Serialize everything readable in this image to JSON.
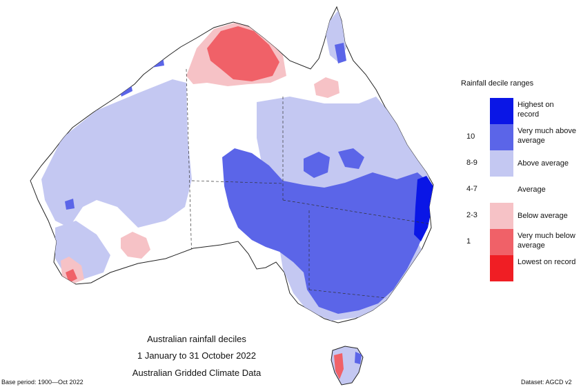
{
  "titles": {
    "line1": "Australian rainfall deciles",
    "line2": "1 January to 31 October 2022",
    "line3": "Australian Gridded Climate Data"
  },
  "footer": {
    "base_period": "Base period: 1900—Oct 2022",
    "dataset": "Dataset: AGCD v2"
  },
  "legend": {
    "title": "Rainfall decile ranges",
    "items": [
      {
        "range": "",
        "label": "Highest on record",
        "color": "#0a16e6"
      },
      {
        "range": "10",
        "label": "Very much above average",
        "color": "#5b65e8"
      },
      {
        "range": "8-9",
        "label": "Above average",
        "color": "#c4c8f2"
      },
      {
        "range": "4-7",
        "label": "Average",
        "color": "#ffffff"
      },
      {
        "range": "2-3",
        "label": "Below average",
        "color": "#f6c2c6"
      },
      {
        "range": "1",
        "label": "Very much below average",
        "color": "#f06168"
      },
      {
        "range": "",
        "label": "Lowest on record",
        "color": "#f01e24"
      }
    ]
  },
  "colors": {
    "highest": "#0a16e6",
    "very_much_above": "#5b65e8",
    "above": "#c4c8f2",
    "average": "#ffffff",
    "below": "#f6c2c6",
    "very_much_below": "#f06168",
    "lowest": "#f01e24"
  }
}
